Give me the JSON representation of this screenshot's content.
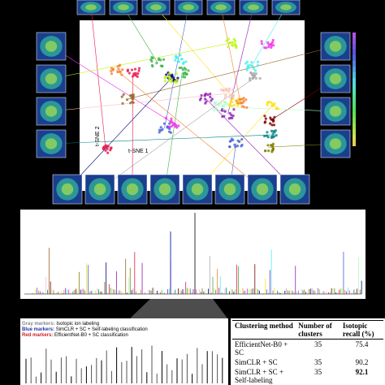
{
  "tsne": {
    "x_label": "t-SNE 1",
    "y_label": "t-SNE 2"
  },
  "legend": [
    {
      "key": "Gray markers:",
      "text": "Isotopic ion labeling",
      "color": "#888888"
    },
    {
      "key": "Blue markers:",
      "text": "SimCLR + SC + Self-labeling classification",
      "color": "#2233aa"
    },
    {
      "key": "Red markers:",
      "text": "EfficientNet-B0 + SC classification",
      "color": "#cc2222"
    }
  ],
  "table": {
    "header": [
      "Clustering method",
      "Number of clusters",
      "Isotopic recall (%)"
    ],
    "rows": [
      [
        "EfficientNet-B0 + SC",
        "35",
        "75.4"
      ],
      [
        "SimCLR + SC",
        "35",
        "90.2"
      ],
      [
        "SimCLR + SC + Self-labeling",
        "35",
        "92.1"
      ]
    ]
  }
}
